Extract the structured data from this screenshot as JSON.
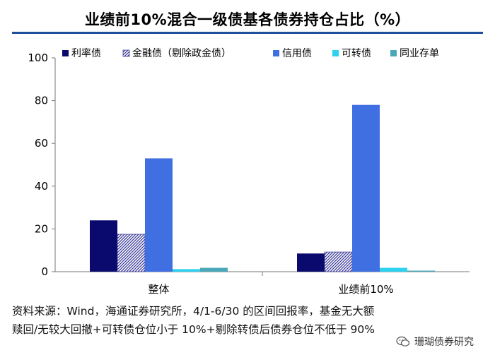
{
  "title": "业绩前10%混合一级债基各债券持仓占比（%）",
  "source": {
    "line1": "资料来源：Wind，海通证券研究所，4/1-6/30 的区间回报率，基金无大额",
    "line2": "赎回/无较大回撤+可转债仓位小于 10%+剔除转债后债券仓位不低于 90%"
  },
  "watermark": {
    "text": "珊瑚债券研究",
    "icon": "wechat-icon"
  },
  "chart_data": {
    "type": "bar",
    "title": "业绩前10%混合一级债基各债券持仓占比（%）",
    "categories": [
      "整体",
      "业绩前10%"
    ],
    "series": [
      {
        "name": "利率债",
        "values": [
          24,
          8.5
        ],
        "color": "#0a0a6e",
        "pattern": "solid"
      },
      {
        "name": "金融债（剔除政金债）",
        "values": [
          17.5,
          9.2
        ],
        "color": "#3a3a9a",
        "pattern": "hatch"
      },
      {
        "name": "信用债",
        "values": [
          53,
          78
        ],
        "color": "#3f6fe0",
        "pattern": "solid"
      },
      {
        "name": "可转债",
        "values": [
          1.2,
          1.8
        ],
        "color": "#2ed2ef",
        "pattern": "solid"
      },
      {
        "name": "同业存单",
        "values": [
          1.8,
          0.5
        ],
        "color": "#4aa8b8",
        "pattern": "solid"
      }
    ],
    "yticks": [
      0,
      20,
      40,
      60,
      80,
      100
    ],
    "ylim": [
      0,
      100
    ],
    "xlabel": "",
    "ylabel": "",
    "grid": false,
    "legend_position": "top"
  }
}
